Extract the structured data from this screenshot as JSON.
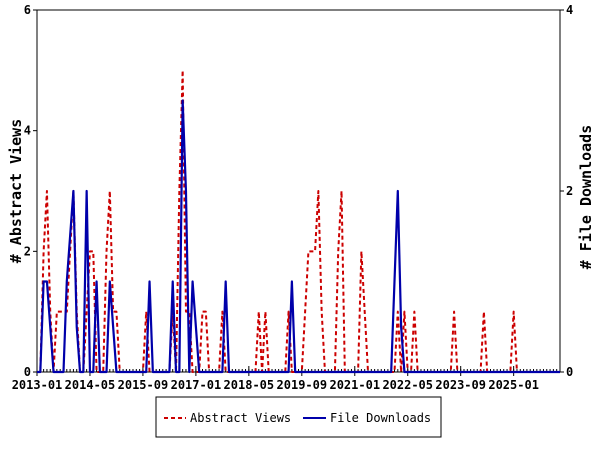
{
  "chart_data": {
    "type": "line",
    "title": "",
    "xlabel": "",
    "ylabel_left": "# Abstract Views",
    "ylabel_right": "# File Downloads",
    "ylim_left": [
      0,
      6
    ],
    "ylim_right": [
      0,
      4
    ],
    "yticks_left": [
      "0",
      "2",
      "4",
      "6"
    ],
    "yticks_right": [
      "0",
      "2",
      "4"
    ],
    "xlim": [
      "2013-01",
      "2026-03"
    ],
    "xticks": [
      "2013-01",
      "2014-05",
      "2015-09",
      "2017-01",
      "2018-05",
      "2019-09",
      "2021-01",
      "2022-05",
      "2023-09",
      "2025-01"
    ],
    "grid": false,
    "legend": {
      "placement": "bottom-center",
      "labels": [
        "Abstract Views",
        "File Downloads"
      ]
    },
    "colors": {
      "Abstract Views": "#cc0000",
      "File Downloads": "#0000aa"
    },
    "series": [
      {
        "name": "Abstract Views",
        "axis": "left",
        "style": "dashed",
        "points": [
          [
            "2013-03",
            2
          ],
          [
            "2013-04",
            3
          ],
          [
            "2013-05",
            1
          ],
          [
            "2013-07",
            1
          ],
          [
            "2013-08",
            1
          ],
          [
            "2013-09",
            1
          ],
          [
            "2013-10",
            1
          ],
          [
            "2013-11",
            2
          ],
          [
            "2013-12",
            3
          ],
          [
            "2014-01",
            1
          ],
          [
            "2014-04",
            1
          ],
          [
            "2014-05",
            2
          ],
          [
            "2014-06",
            2
          ],
          [
            "2014-10",
            2
          ],
          [
            "2014-11",
            3
          ],
          [
            "2014-12",
            1
          ],
          [
            "2015-01",
            1
          ],
          [
            "2015-10",
            1
          ],
          [
            "2016-06",
            1
          ],
          [
            "2016-08",
            3
          ],
          [
            "2016-09",
            5
          ],
          [
            "2016-10",
            1
          ],
          [
            "2016-11",
            1
          ],
          [
            "2017-01",
            0
          ],
          [
            "2017-03",
            1
          ],
          [
            "2017-04",
            1
          ],
          [
            "2017-09",
            1
          ],
          [
            "2018-08",
            1
          ],
          [
            "2018-10",
            1
          ],
          [
            "2019-05",
            1
          ],
          [
            "2019-10",
            1
          ],
          [
            "2019-11",
            2
          ],
          [
            "2019-12",
            2
          ],
          [
            "2020-01",
            2
          ],
          [
            "2020-02",
            3
          ],
          [
            "2020-03",
            1
          ],
          [
            "2020-08",
            2
          ],
          [
            "2020-09",
            3
          ],
          [
            "2021-03",
            2
          ],
          [
            "2021-04",
            1
          ],
          [
            "2022-02",
            1
          ],
          [
            "2022-04",
            1
          ],
          [
            "2022-07",
            1
          ],
          [
            "2023-07",
            1
          ],
          [
            "2024-04",
            1
          ],
          [
            "2025-01",
            1
          ]
        ]
      },
      {
        "name": "File Downloads",
        "axis": "right",
        "style": "solid",
        "points": [
          [
            "2013-03",
            1
          ],
          [
            "2013-04",
            1
          ],
          [
            "2013-05",
            0.5
          ],
          [
            "2013-10",
            1
          ],
          [
            "2013-11",
            1.5
          ],
          [
            "2013-12",
            2
          ],
          [
            "2014-01",
            0.5
          ],
          [
            "2014-04",
            2
          ],
          [
            "2014-07",
            1
          ],
          [
            "2014-11",
            1
          ],
          [
            "2014-12",
            0.5
          ],
          [
            "2015-11",
            1
          ],
          [
            "2016-06",
            1
          ],
          [
            "2016-09",
            3
          ],
          [
            "2016-10",
            2
          ],
          [
            "2016-12",
            1
          ],
          [
            "2017-01",
            0.5
          ],
          [
            "2017-10",
            1
          ],
          [
            "2019-06",
            1
          ],
          [
            "2022-01",
            1
          ],
          [
            "2022-02",
            2
          ],
          [
            "2022-03",
            0.5
          ]
        ]
      }
    ]
  }
}
